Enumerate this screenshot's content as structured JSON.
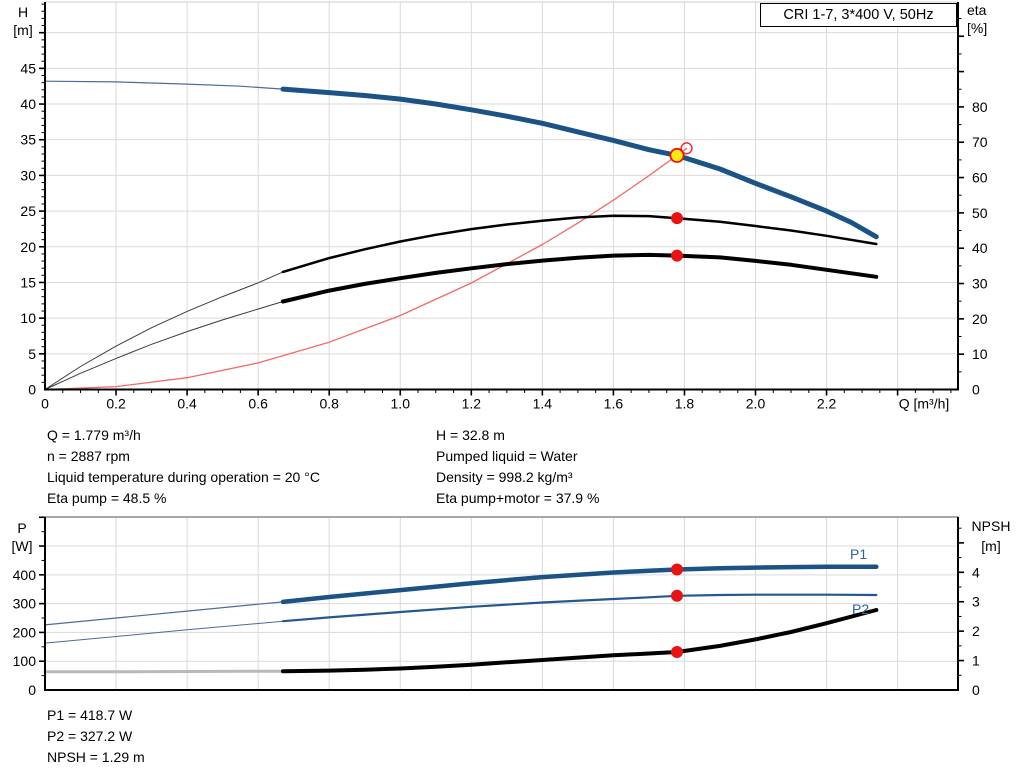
{
  "colors": {
    "background": "#ffffff",
    "grid": "#d9d9d9",
    "axis": "#000000",
    "curve_blue": "#1b5386",
    "thin_blue": "#4a6e96",
    "curve_black": "#000000",
    "thin_black": "#3c3c3c",
    "system_red": "#f26a6a",
    "marker_red": "#e81414",
    "marker_yellow": "#ffe813",
    "label_blue": "#2b63a5",
    "npsh_gray": "#b9b9b9",
    "top_border_gray": "#a8a8a8"
  },
  "annotations": {
    "block1_left": [
      "Q = 1.779 m³/h",
      "n = 2887 rpm",
      "Liquid temperature during operation = 20 °C",
      "Eta pump = 48.5 %"
    ],
    "block1_right": [
      "H = 32.8 m",
      "Pumped liquid = Water",
      "Density = 998.2 kg/m³",
      "Eta pump+motor = 37.9 %"
    ],
    "block2": [
      "P1 = 418.7 W",
      "P2 = 327.2 W",
      "NPSH = 1.29 m"
    ]
  },
  "chart_data": [
    {
      "id": "top",
      "type": "line",
      "title": "CRI 1-7, 3*400 V, 50Hz",
      "xlabel": "Q [m³/h]",
      "x_axis": {
        "tick_values": [
          0,
          0.2,
          0.4,
          0.6,
          0.8,
          1.0,
          1.2,
          1.4,
          1.6,
          1.8,
          2.0,
          2.2
        ],
        "tick_labels": [
          "0",
          "0.2",
          "0.4",
          "0.6",
          "0.8",
          "1.0",
          "1.2",
          "1.4",
          "1.6",
          "1.8",
          "2.0",
          "2.2"
        ],
        "range": [
          0,
          2.57
        ]
      },
      "y_left": {
        "label": [
          "H",
          "[m]"
        ],
        "tick_values": [
          0,
          5,
          10,
          15,
          20,
          25,
          30,
          35,
          40,
          45
        ],
        "tick_labels": [
          "0",
          "5",
          "10",
          "15",
          "20",
          "25",
          "30",
          "35",
          "40",
          "45"
        ],
        "range": [
          0,
          54.3
        ],
        "grid_values": [
          5,
          10,
          15,
          20,
          25,
          30,
          35,
          40,
          45,
          50
        ]
      },
      "y_right": {
        "label": [
          "eta",
          "[%]"
        ],
        "tick_values": [
          0,
          10,
          20,
          30,
          40,
          50,
          60,
          70,
          80
        ],
        "tick_labels": [
          "0",
          "10",
          "20",
          "30",
          "40",
          "50",
          "60",
          "70",
          "80"
        ],
        "range": [
          0,
          109.7
        ]
      },
      "series": [
        {
          "name": "system-curve",
          "axis": "left",
          "color": "#f26a6a",
          "width": 1.3,
          "points": [
            [
              0,
              0
            ],
            [
              0.2,
              0.41
            ],
            [
              0.4,
              1.66
            ],
            [
              0.6,
              3.73
            ],
            [
              0.8,
              6.63
            ],
            [
              1.0,
              10.37
            ],
            [
              1.2,
              14.93
            ],
            [
              1.4,
              20.32
            ],
            [
              1.5,
              23.32
            ],
            [
              1.6,
              26.53
            ],
            [
              1.7,
              29.96
            ],
            [
              1.779,
              32.8
            ],
            [
              1.806,
              33.8
            ]
          ]
        },
        {
          "name": "eta-pump-curve-extension",
          "axis": "right",
          "color": "#3c3c3c",
          "width": 1,
          "points": [
            [
              0,
              0
            ],
            [
              0.1,
              6.5
            ],
            [
              0.2,
              12.3
            ],
            [
              0.3,
              17.5
            ],
            [
              0.4,
              22.1
            ],
            [
              0.5,
              26.3
            ],
            [
              0.6,
              30.2
            ],
            [
              0.67,
              33.3
            ]
          ]
        },
        {
          "name": "eta-total-curve-extension",
          "axis": "right",
          "color": "#3c3c3c",
          "width": 1,
          "points": [
            [
              0,
              0
            ],
            [
              0.1,
              4.6
            ],
            [
              0.2,
              8.8
            ],
            [
              0.3,
              12.8
            ],
            [
              0.4,
              16.4
            ],
            [
              0.5,
              19.7
            ],
            [
              0.6,
              22.8
            ],
            [
              0.67,
              24.9
            ]
          ]
        },
        {
          "name": "eta-pump-curve",
          "axis": "right",
          "color": "#000000",
          "width": 2.5,
          "points": [
            [
              0.67,
              33.3
            ],
            [
              0.8,
              37.2
            ],
            [
              0.9,
              39.7
            ],
            [
              1.0,
              41.9
            ],
            [
              1.1,
              43.8
            ],
            [
              1.2,
              45.4
            ],
            [
              1.3,
              46.7
            ],
            [
              1.4,
              47.8
            ],
            [
              1.5,
              48.7
            ],
            [
              1.6,
              49.2
            ],
            [
              1.7,
              49.1
            ],
            [
              1.779,
              48.5
            ],
            [
              1.9,
              47.5
            ],
            [
              2.0,
              46.3
            ],
            [
              2.1,
              45.0
            ],
            [
              2.2,
              43.5
            ],
            [
              2.34,
              41.2
            ]
          ]
        },
        {
          "name": "eta-total-curve",
          "axis": "right",
          "color": "#000000",
          "width": 4,
          "points": [
            [
              0.67,
              24.9
            ],
            [
              0.8,
              28.0
            ],
            [
              0.9,
              29.9
            ],
            [
              1.0,
              31.5
            ],
            [
              1.1,
              33.0
            ],
            [
              1.2,
              34.3
            ],
            [
              1.3,
              35.5
            ],
            [
              1.4,
              36.5
            ],
            [
              1.5,
              37.3
            ],
            [
              1.6,
              37.9
            ],
            [
              1.7,
              38.1
            ],
            [
              1.779,
              37.9
            ],
            [
              1.9,
              37.4
            ],
            [
              2.0,
              36.4
            ],
            [
              2.1,
              35.3
            ],
            [
              2.2,
              33.9
            ],
            [
              2.34,
              31.9
            ]
          ]
        },
        {
          "name": "pump-curve-extension",
          "axis": "left",
          "color": "#4a6e96",
          "width": 1.2,
          "points": [
            [
              0,
              43.2
            ],
            [
              0.2,
              43.1
            ],
            [
              0.4,
              42.8
            ],
            [
              0.55,
              42.5
            ],
            [
              0.67,
              42.1
            ]
          ]
        },
        {
          "name": "pump-curve",
          "axis": "left",
          "color": "#1b5386",
          "width": 5,
          "points": [
            [
              0.67,
              42.1
            ],
            [
              0.8,
              41.6
            ],
            [
              0.9,
              41.2
            ],
            [
              1.0,
              40.7
            ],
            [
              1.1,
              40.0
            ],
            [
              1.2,
              39.2
            ],
            [
              1.3,
              38.3
            ],
            [
              1.4,
              37.3
            ],
            [
              1.5,
              36.1
            ],
            [
              1.6,
              34.9
            ],
            [
              1.7,
              33.6
            ],
            [
              1.779,
              32.8
            ],
            [
              1.9,
              30.9
            ],
            [
              2.0,
              28.9
            ],
            [
              2.1,
              27.0
            ],
            [
              2.2,
              25.0
            ],
            [
              2.27,
              23.4
            ],
            [
              2.34,
              21.4
            ]
          ]
        }
      ],
      "markers": [
        {
          "name": "requested-duty-point",
          "style": "red-open-circle",
          "axis": "left",
          "q": 1.806,
          "v": 33.8
        },
        {
          "name": "eta-pump-operating-point",
          "style": "red-dot",
          "axis": "right",
          "q": 1.779,
          "v": 48.5
        },
        {
          "name": "eta-total-operating-point",
          "style": "red-dot",
          "axis": "right",
          "q": 1.779,
          "v": 37.9
        },
        {
          "name": "duty-point",
          "style": "yellow-dot",
          "axis": "left",
          "q": 1.779,
          "v": 32.8
        }
      ]
    },
    {
      "id": "bottom",
      "type": "line",
      "xlabel": "",
      "x_axis": {
        "tick_values": [],
        "tick_labels": [],
        "range": [
          0,
          2.57
        ]
      },
      "y_left": {
        "label": [
          "P",
          "[W]"
        ],
        "tick_values": [
          0,
          100,
          200,
          300,
          400
        ],
        "tick_labels": [
          "0",
          "100",
          "200",
          "300",
          "400"
        ],
        "range": [
          0,
          600.9
        ],
        "grid_values": [
          100,
          200,
          300,
          400,
          500
        ]
      },
      "y_right": {
        "label": [
          "NPSH",
          "[m]"
        ],
        "tick_values": [
          0,
          1,
          2,
          3,
          4
        ],
        "tick_labels": [
          "0",
          "1",
          "2",
          "3",
          "4"
        ],
        "range": [
          0,
          5.88
        ]
      },
      "curve_labels": [
        {
          "text": "P1"
        },
        {
          "text": "P2"
        }
      ],
      "series": [
        {
          "name": "p1-curve-extension",
          "axis": "left",
          "color": "#4a6e96",
          "width": 1.2,
          "points": [
            [
              0,
              226
            ],
            [
              0.2,
              250
            ],
            [
              0.4,
              274
            ],
            [
              0.6,
              298
            ],
            [
              0.67,
              306
            ]
          ]
        },
        {
          "name": "p2-curve-extension",
          "axis": "left",
          "color": "#4a6e96",
          "width": 1,
          "points": [
            [
              0,
              163
            ],
            [
              0.2,
              186
            ],
            [
              0.4,
              209
            ],
            [
              0.6,
              231
            ],
            [
              0.67,
              239
            ]
          ]
        },
        {
          "name": "npsh-curve-extension",
          "axis": "right",
          "color": "#b9b9b9",
          "width": 3,
          "points": [
            [
              0,
              0.62
            ],
            [
              0.2,
              0.62
            ],
            [
              0.4,
              0.63
            ],
            [
              0.6,
              0.64
            ],
            [
              0.67,
              0.64
            ]
          ]
        },
        {
          "name": "p1-curve",
          "axis": "left",
          "color": "#1b5386",
          "width": 4.5,
          "points": [
            [
              0.67,
              306
            ],
            [
              0.8,
              323
            ],
            [
              1.0,
              347
            ],
            [
              1.2,
              371
            ],
            [
              1.4,
              392
            ],
            [
              1.6,
              408
            ],
            [
              1.7,
              414
            ],
            [
              1.779,
              418.7
            ],
            [
              1.9,
              423
            ],
            [
              2.0,
              425
            ],
            [
              2.1,
              427
            ],
            [
              2.2,
              428
            ],
            [
              2.34,
              428
            ]
          ]
        },
        {
          "name": "p2-curve",
          "axis": "left",
          "color": "#24588f",
          "width": 2.2,
          "points": [
            [
              0.67,
              239
            ],
            [
              0.8,
              252
            ],
            [
              1.0,
              271
            ],
            [
              1.2,
              289
            ],
            [
              1.4,
              304
            ],
            [
              1.6,
              316
            ],
            [
              1.7,
              322
            ],
            [
              1.779,
              327.2
            ],
            [
              1.9,
              330
            ],
            [
              2.0,
              331
            ],
            [
              2.2,
              331
            ],
            [
              2.34,
              330
            ]
          ]
        },
        {
          "name": "npsh-curve",
          "axis": "right",
          "color": "#000000",
          "width": 4,
          "points": [
            [
              0.67,
              0.64
            ],
            [
              0.8,
              0.66
            ],
            [
              0.9,
              0.69
            ],
            [
              1.0,
              0.73
            ],
            [
              1.1,
              0.79
            ],
            [
              1.2,
              0.86
            ],
            [
              1.3,
              0.94
            ],
            [
              1.4,
              1.02
            ],
            [
              1.5,
              1.1
            ],
            [
              1.6,
              1.18
            ],
            [
              1.7,
              1.24
            ],
            [
              1.779,
              1.29
            ],
            [
              1.9,
              1.5
            ],
            [
              2.0,
              1.72
            ],
            [
              2.1,
              1.97
            ],
            [
              2.2,
              2.27
            ],
            [
              2.34,
              2.72
            ]
          ]
        }
      ],
      "markers": [
        {
          "name": "p1-operating-point",
          "style": "red-dot",
          "axis": "left",
          "q": 1.779,
          "v": 418.7
        },
        {
          "name": "p2-operating-point",
          "style": "red-dot",
          "axis": "left",
          "q": 1.779,
          "v": 327.2
        },
        {
          "name": "npsh-operating-point",
          "style": "red-dot",
          "axis": "right",
          "q": 1.779,
          "v": 1.29
        }
      ]
    }
  ]
}
